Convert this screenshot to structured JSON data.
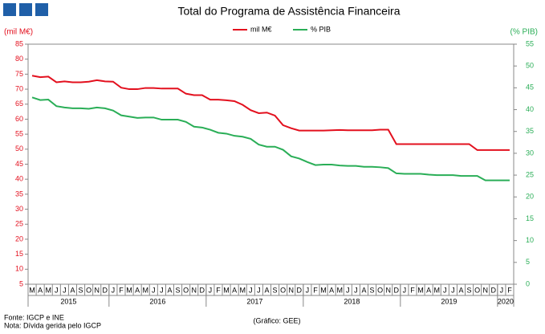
{
  "chart_data": {
    "type": "line",
    "title": "Total do Programa de Assistência Financeira",
    "ylabel": "(mil M€)",
    "y2label": "(% PIB)",
    "legend": "top",
    "category_groups": [
      {
        "label": "2015",
        "categories": [
          "M",
          "A",
          "M",
          "J",
          "J",
          "A",
          "S",
          "O",
          "N",
          "D"
        ]
      },
      {
        "label": "2016",
        "categories": [
          "J",
          "F",
          "M",
          "A",
          "M",
          "J",
          "J",
          "A",
          "S",
          "O",
          "N",
          "D"
        ]
      },
      {
        "label": "2017",
        "categories": [
          "J",
          "F",
          "M",
          "A",
          "M",
          "J",
          "J",
          "A",
          "S",
          "O",
          "N",
          "D"
        ]
      },
      {
        "label": "2018",
        "categories": [
          "J",
          "F",
          "M",
          "A",
          "M",
          "J",
          "J",
          "A",
          "S",
          "O",
          "N",
          "D"
        ]
      },
      {
        "label": "2019",
        "categories": [
          "J",
          "F",
          "M",
          "A",
          "M",
          "J",
          "J",
          "A",
          "S",
          "O",
          "N",
          "D"
        ]
      },
      {
        "label": "2020",
        "categories": [
          "J",
          "F"
        ]
      }
    ],
    "series": [
      {
        "name": "mil M€",
        "color": "#e3101e",
        "axis": "y",
        "values": [
          74.5,
          74,
          74.2,
          72.3,
          72.6,
          72.3,
          72.3,
          72.5,
          73,
          72.6,
          72.5,
          70.5,
          70,
          70,
          70.4,
          70.4,
          70.2,
          70.2,
          70.2,
          68.5,
          68,
          68,
          66.5,
          66.5,
          66.3,
          66,
          64.8,
          63,
          62,
          62.2,
          61.2,
          58,
          57,
          56.2,
          56.2,
          56.2,
          56.2,
          56.3,
          56.4,
          56.3,
          56.3,
          56.3,
          56.3,
          56.5,
          56.5,
          51.7,
          51.7,
          51.7,
          51.7,
          51.7,
          51.7,
          51.7,
          51.7,
          51.7,
          51.7,
          49.7,
          49.7,
          49.7,
          49.7,
          49.7
        ]
      },
      {
        "name": "% PIB",
        "color": "#2aae57",
        "axis": "y2",
        "values": [
          42.8,
          42.2,
          42.3,
          40.8,
          40.5,
          40.3,
          40.3,
          40.2,
          40.5,
          40.3,
          39.8,
          38.7,
          38.4,
          38.1,
          38.2,
          38.2,
          37.7,
          37.7,
          37.7,
          37.2,
          36.1,
          35.9,
          35.4,
          34.7,
          34.5,
          34,
          33.8,
          33.3,
          32,
          31.5,
          31.5,
          30.8,
          29.3,
          28.8,
          28,
          27.3,
          27.4,
          27.4,
          27.2,
          27.1,
          27.1,
          26.9,
          26.9,
          26.8,
          26.6,
          25.4,
          25.3,
          25.3,
          25.3,
          25.1,
          25,
          25,
          25,
          24.8,
          24.8,
          24.8,
          23.8,
          23.8,
          23.8,
          23.8
        ]
      }
    ],
    "ylim": [
      5,
      85
    ],
    "yticks": [
      5,
      10,
      15,
      20,
      25,
      30,
      35,
      40,
      45,
      50,
      55,
      60,
      65,
      70,
      75,
      80,
      85
    ],
    "y2lim": [
      0,
      55
    ],
    "y2ticks": [
      0,
      5,
      10,
      15,
      20,
      25,
      30,
      35,
      40,
      45,
      50,
      55
    ],
    "notes": [
      "Fonte: IGCP e INE",
      "Nota: Dívida gerida pelo IGCP"
    ],
    "credit": "(Gráfico: GEE)"
  }
}
